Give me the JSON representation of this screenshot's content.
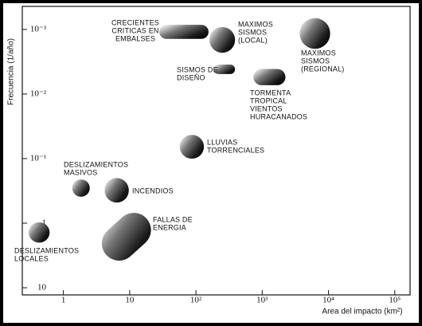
{
  "chart_data": {
    "type": "range",
    "x_label": "Area del impacto (km²)",
    "y_label": "Frecuencia (1/año)",
    "xlog": true,
    "ylog": true,
    "xlim": [
      0.24,
      170000
    ],
    "ylim": [
      12.9,
      0.00044
    ],
    "xticks": [
      1,
      10,
      {
        "value": 100,
        "label": "10²"
      },
      {
        "value": 1000,
        "label": "10³"
      },
      {
        "value": 10000,
        "label": "10⁴"
      },
      {
        "value": 100000,
        "label": "10⁵"
      }
    ],
    "yticks": [
      {
        "value": 0.001,
        "label": "10⁻³"
      },
      {
        "value": 0.01,
        "label": "10⁻²"
      },
      {
        "value": 0.1,
        "label": "10⁻¹"
      },
      1,
      10
    ],
    "color": "#111111",
    "items": [
      {
        "label": [
          "CRECIENTES",
          "CRITICAS EN",
          "EMBALSES"
        ],
        "x": [
          28,
          155
        ],
        "y": [
          0.00085,
          0.0014
        ]
      },
      {
        "label": [
          "MAXIMOS",
          "SISMOS",
          "(LOCAL)"
        ],
        "x": [
          160,
          389
        ],
        "y": [
          0.00092,
          0.0023
        ]
      },
      {
        "label": [
          "MAXIMOS",
          "SISMOS",
          "(REGIONAL)"
        ],
        "x": [
          3680,
          10600
        ],
        "y": [
          0.00067,
          0.002
        ]
      },
      {
        "label": [
          "SISMOS DE",
          "DISEÑO"
        ],
        "x": [
          184,
          389
        ],
        "y": [
          0.0035,
          0.0049
        ]
      },
      {
        "label": [
          "TORMENTA",
          "TROPICAL",
          "VIENTOS",
          "HURACANADOS"
        ],
        "x": [
          736,
          2240
        ],
        "y": [
          0.0041,
          0.0073
        ]
      },
      {
        "label": [
          "LLUVIAS",
          "TORRENCIALES"
        ],
        "x": [
          57,
          132
        ],
        "y": [
          0.043,
          0.1
        ]
      },
      {
        "label": [
          "DESLIZAMIENTOS",
          "MASIVOS"
        ],
        "x": [
          1.36,
          2.5
        ],
        "y": [
          0.21,
          0.39
        ]
      },
      {
        "label": [
          "INCENDIOS"
        ],
        "x": [
          4.2,
          9.7
        ],
        "y": [
          0.2,
          0.48
        ]
      },
      {
        "label": [
          "FALLAS DE",
          "ENERGIA"
        ],
        "x": [
          3.8,
          21
        ],
        "y": [
          0.69,
          3.8
        ],
        "shape": "diagonal"
      },
      {
        "label": [
          "DESLIZAMIENTOS",
          "LOCALES"
        ],
        "x": [
          0.3,
          0.62
        ],
        "y": [
          0.97,
          2.0
        ]
      }
    ]
  }
}
